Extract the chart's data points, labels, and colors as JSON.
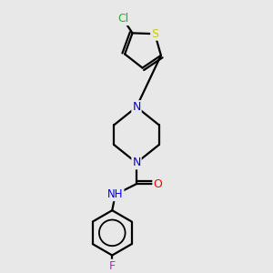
{
  "background_color": "#e8e8e8",
  "bond_color": "#000000",
  "atom_colors": {
    "N": "#0000ee",
    "O": "#ff0000",
    "S": "#cccc00",
    "F": "#ee00ee",
    "Cl": "#00cc00",
    "H": "#808080",
    "C": "#000000"
  },
  "figsize": [
    3.0,
    3.0
  ],
  "dpi": 100,
  "xlim": [
    0.1,
    0.9
  ],
  "ylim": [
    0.02,
    1.02
  ]
}
